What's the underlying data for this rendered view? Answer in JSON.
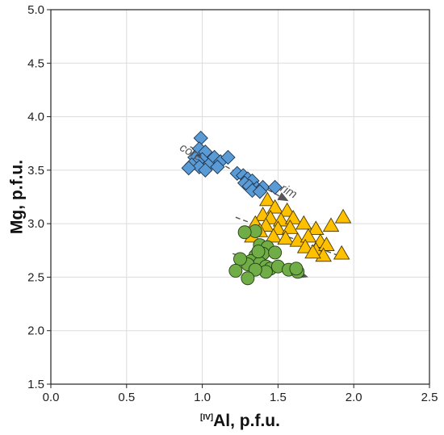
{
  "chart_data": {
    "type": "scatter",
    "title": "",
    "xlabel_sup": "[IV]",
    "xlabel": "Al, p.f.u.",
    "ylabel": "Mg, p.f.u.",
    "xlim": [
      0.0,
      2.5
    ],
    "ylim": [
      1.5,
      5.0
    ],
    "xticks": [
      "0.0",
      "0.5",
      "1.0",
      "1.5",
      "2.0",
      "2.5"
    ],
    "yticks": [
      "1.5",
      "2.0",
      "2.5",
      "3.0",
      "3.5",
      "4.0",
      "4.5",
      "5.0"
    ],
    "grid": true,
    "legend": "none",
    "series": [
      {
        "marker": "diamond",
        "color": "#5b9bd5",
        "points": [
          [
            0.99,
            3.8
          ],
          [
            0.98,
            3.7
          ],
          [
            1.02,
            3.67
          ],
          [
            0.95,
            3.62
          ],
          [
            1.0,
            3.6
          ],
          [
            0.97,
            3.58
          ],
          [
            0.93,
            3.55
          ],
          [
            1.05,
            3.56
          ],
          [
            0.98,
            3.53
          ],
          [
            1.02,
            3.5
          ],
          [
            0.91,
            3.52
          ],
          [
            1.08,
            3.62
          ],
          [
            1.12,
            3.58
          ],
          [
            1.17,
            3.62
          ],
          [
            1.1,
            3.53
          ],
          [
            1.23,
            3.47
          ],
          [
            1.27,
            3.45
          ],
          [
            1.3,
            3.42
          ],
          [
            1.33,
            3.4
          ],
          [
            1.28,
            3.38
          ],
          [
            1.31,
            3.35
          ],
          [
            1.36,
            3.33
          ],
          [
            1.33,
            3.31
          ],
          [
            1.4,
            3.34
          ],
          [
            1.48,
            3.34
          ],
          [
            1.38,
            3.3
          ]
        ]
      },
      {
        "marker": "triangle",
        "color": "#ffc000",
        "points": [
          [
            1.43,
            3.22
          ],
          [
            1.4,
            3.08
          ],
          [
            1.48,
            3.15
          ],
          [
            1.56,
            3.12
          ],
          [
            1.45,
            3.05
          ],
          [
            1.52,
            3.03
          ],
          [
            1.6,
            3.05
          ],
          [
            1.35,
            3.0
          ],
          [
            1.42,
            2.98
          ],
          [
            1.5,
            2.95
          ],
          [
            1.58,
            2.96
          ],
          [
            1.67,
            3.0
          ],
          [
            1.75,
            2.95
          ],
          [
            1.85,
            2.98
          ],
          [
            1.38,
            2.93
          ],
          [
            1.47,
            2.88
          ],
          [
            1.55,
            2.86
          ],
          [
            1.63,
            2.84
          ],
          [
            1.7,
            2.88
          ],
          [
            1.78,
            2.83
          ],
          [
            1.68,
            2.78
          ],
          [
            1.75,
            2.75
          ],
          [
            1.82,
            2.8
          ],
          [
            1.8,
            2.7
          ],
          [
            1.73,
            2.73
          ],
          [
            1.92,
            2.72
          ],
          [
            1.93,
            3.06
          ],
          [
            1.33,
            2.88
          ]
        ]
      },
      {
        "marker": "circle",
        "color": "#70ad47",
        "points": [
          [
            1.35,
            2.93
          ],
          [
            1.28,
            2.92
          ],
          [
            1.38,
            2.8
          ],
          [
            1.43,
            2.78
          ],
          [
            1.4,
            2.72
          ],
          [
            1.35,
            2.7
          ],
          [
            1.48,
            2.73
          ],
          [
            1.32,
            2.65
          ],
          [
            1.38,
            2.63
          ],
          [
            1.42,
            2.6
          ],
          [
            1.45,
            2.58
          ],
          [
            1.5,
            2.6
          ],
          [
            1.3,
            2.62
          ],
          [
            1.25,
            2.67
          ],
          [
            1.42,
            2.55
          ],
          [
            1.35,
            2.57
          ],
          [
            1.22,
            2.56
          ],
          [
            1.3,
            2.49
          ],
          [
            1.57,
            2.57
          ],
          [
            1.63,
            2.55
          ],
          [
            1.62,
            2.58
          ],
          [
            1.37,
            2.74
          ]
        ]
      }
    ],
    "trend_arrows": [
      {
        "from": [
          0.92,
          3.72
        ],
        "to": [
          1.57,
          3.21
        ]
      },
      {
        "from": [
          1.22,
          3.06
        ],
        "to": [
          1.96,
          2.67
        ]
      },
      {
        "from": [
          1.2,
          2.72
        ],
        "to": [
          1.7,
          2.5
        ]
      }
    ],
    "annotations": [
      {
        "text": "core"
      },
      {
        "text": "rim"
      }
    ]
  }
}
